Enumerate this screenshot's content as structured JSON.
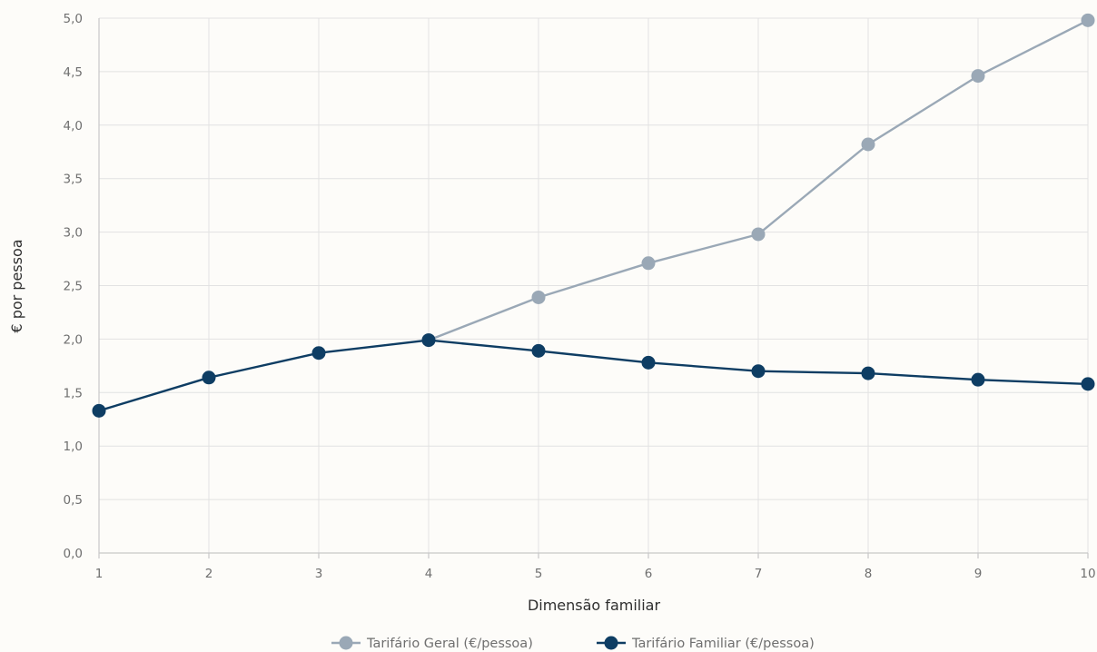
{
  "chart_data": {
    "type": "line",
    "xlabel": "Dimensão familiar",
    "ylabel": "€ por pessoa",
    "x": [
      1,
      2,
      3,
      4,
      5,
      6,
      7,
      8,
      9,
      10
    ],
    "x_tick_labels": [
      "1",
      "2",
      "3",
      "4",
      "5",
      "6",
      "7",
      "8",
      "9",
      "10"
    ],
    "ylim": [
      0,
      5
    ],
    "y_ticks": [
      0,
      0.5,
      1,
      1.5,
      2,
      2.5,
      3,
      3.5,
      4,
      4.5,
      5
    ],
    "y_tick_labels": [
      "0,0",
      "0,5",
      "1,0",
      "1,5",
      "2,0",
      "2,5",
      "3,0",
      "3,5",
      "4,0",
      "4,5",
      "5,0"
    ],
    "grid": true,
    "legend_position": "bottom",
    "series": [
      {
        "name": "Tarifário Geral (€/pessoa)",
        "color": "#9aa8b6",
        "values": [
          null,
          null,
          null,
          1.99,
          2.39,
          2.71,
          2.98,
          3.82,
          4.46,
          4.98
        ]
      },
      {
        "name": "Tarifário Familiar (€/pessoa)",
        "color": "#0e3d63",
        "values": [
          1.33,
          1.64,
          1.87,
          1.99,
          1.89,
          1.78,
          1.7,
          1.68,
          1.62,
          1.58
        ]
      }
    ]
  }
}
